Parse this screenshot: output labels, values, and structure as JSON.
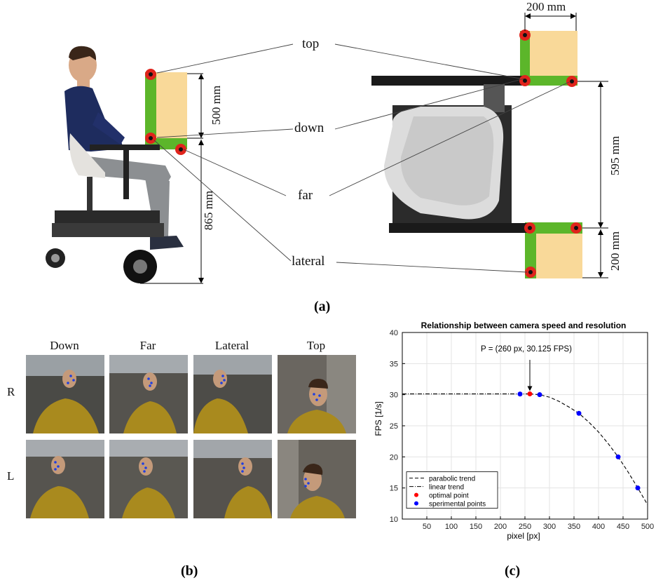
{
  "panel_a": {
    "label": "(a)",
    "callouts": [
      "top",
      "down",
      "far",
      "lateral"
    ],
    "dim_left_500": "500 mm",
    "dim_left_865": "865 mm",
    "dim_top_200": "200 mm",
    "dim_right_595": "595 mm",
    "dim_right_200": "200 mm"
  },
  "panel_b": {
    "label": "(b)",
    "columns": [
      "Down",
      "Far",
      "Lateral",
      "Top"
    ],
    "rows": [
      "R",
      "L"
    ]
  },
  "panel_c": {
    "label": "(c)"
  },
  "chart_data": {
    "type": "scatter",
    "title": "Relationship between camera speed and resolution",
    "xlabel": "pixel [px]",
    "ylabel": "FPS [1/s]",
    "xlim": [
      0,
      500
    ],
    "ylim": [
      10,
      40
    ],
    "xticks": [
      50,
      100,
      150,
      200,
      250,
      300,
      350,
      400,
      450,
      500
    ],
    "yticks": [
      10,
      15,
      20,
      25,
      30,
      35,
      40
    ],
    "grid": true,
    "legend_position": "bottom-left",
    "annotation": "P = (260 px, 30.125 FPS)",
    "series": [
      {
        "name": "parabolic trend",
        "style": "dashed",
        "color": "#000000",
        "x": [
          260,
          280,
          300,
          320,
          340,
          360,
          380,
          400,
          420,
          440,
          460,
          480,
          500
        ],
        "y": [
          30.125,
          30.0,
          29.6,
          28.9,
          28.0,
          27.0,
          25.6,
          24.0,
          22.1,
          20.0,
          17.6,
          15.0,
          12.3
        ]
      },
      {
        "name": "linear trend",
        "style": "dashdot",
        "color": "#000000",
        "x": [
          0,
          260
        ],
        "y": [
          30.125,
          30.125
        ]
      },
      {
        "name": "optimal point",
        "style": "marker",
        "color": "#ff0000",
        "x": [
          260
        ],
        "y": [
          30.125
        ]
      },
      {
        "name": "sperimental points",
        "style": "marker",
        "color": "#0000ff",
        "x": [
          240,
          280,
          360,
          440,
          480
        ],
        "y": [
          30.1,
          30.0,
          27.0,
          20.0,
          15.0
        ]
      }
    ]
  }
}
